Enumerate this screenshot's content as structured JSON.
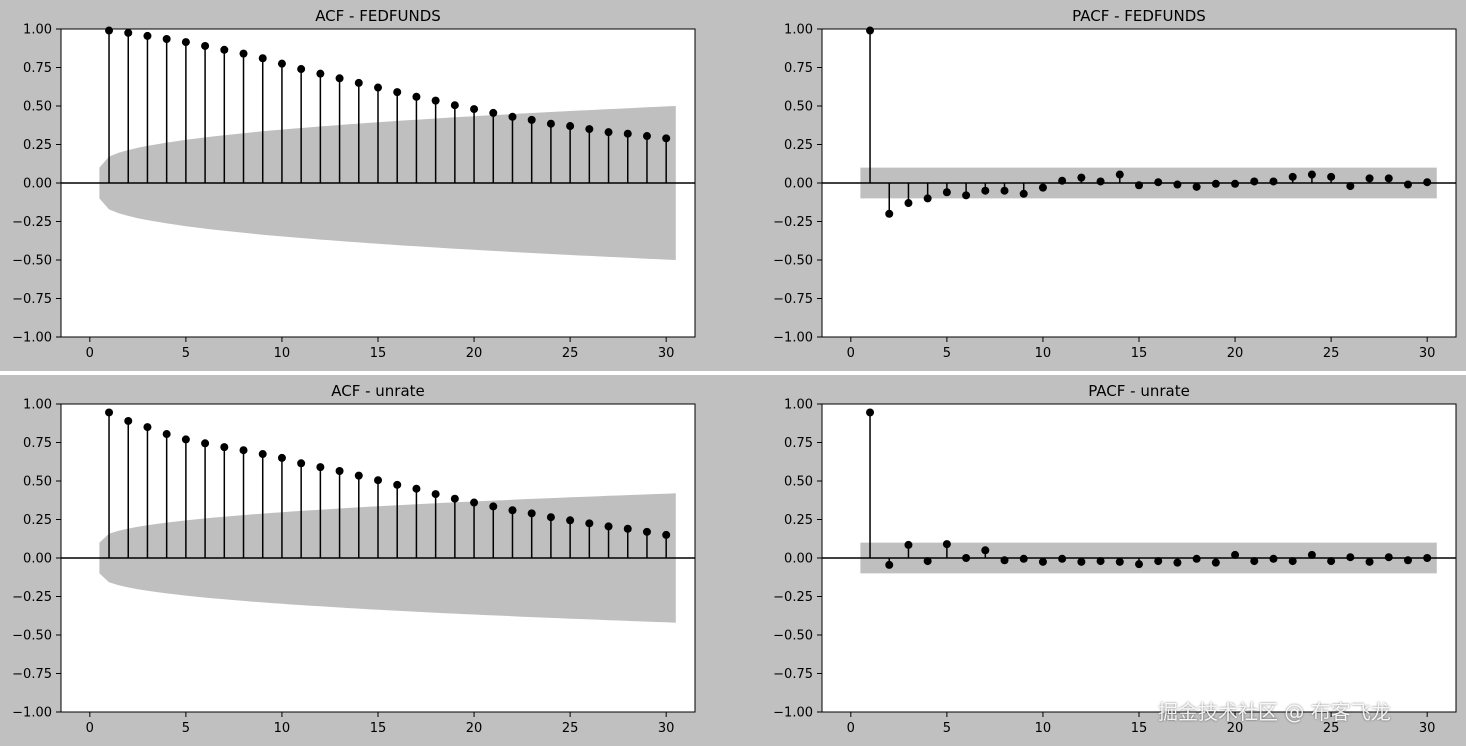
{
  "watermark": "掘金技术社区 @ 布客飞龙",
  "chart_data": [
    {
      "type": "stem",
      "title": "ACF - FEDFUNDS",
      "xlim": [
        -1.5,
        31.5
      ],
      "ylim": [
        -1.0,
        1.0
      ],
      "xticks": [
        0,
        5,
        10,
        15,
        20,
        25,
        30
      ],
      "yticks": [
        1.0,
        0.75,
        0.5,
        0.25,
        0.0,
        -0.25,
        -0.5,
        -0.75,
        -1.0
      ],
      "x": [
        1,
        2,
        3,
        4,
        5,
        6,
        7,
        8,
        9,
        10,
        11,
        12,
        13,
        14,
        15,
        16,
        17,
        18,
        19,
        20,
        21,
        22,
        23,
        24,
        25,
        26,
        27,
        28,
        29,
        30
      ],
      "values": [
        0.99,
        0.975,
        0.955,
        0.935,
        0.915,
        0.89,
        0.865,
        0.84,
        0.81,
        0.775,
        0.74,
        0.71,
        0.68,
        0.65,
        0.62,
        0.59,
        0.56,
        0.535,
        0.505,
        0.48,
        0.455,
        0.43,
        0.41,
        0.385,
        0.37,
        0.35,
        0.33,
        0.32,
        0.305,
        0.29
      ],
      "confint": {
        "type": "expanding",
        "x": [
          0.5,
          30.5
        ],
        "start": 0.1,
        "end": 0.5,
        "color": "#bfbfbf"
      },
      "grid": false
    },
    {
      "type": "stem",
      "title": "PACF - FEDFUNDS",
      "xlim": [
        -1.5,
        31.5
      ],
      "ylim": [
        -1.0,
        1.0
      ],
      "xticks": [
        0,
        5,
        10,
        15,
        20,
        25,
        30
      ],
      "yticks": [
        1.0,
        0.75,
        0.5,
        0.25,
        0.0,
        -0.25,
        -0.5,
        -0.75,
        -1.0
      ],
      "x": [
        1,
        2,
        3,
        4,
        5,
        6,
        7,
        8,
        9,
        10,
        11,
        12,
        13,
        14,
        15,
        16,
        17,
        18,
        19,
        20,
        21,
        22,
        23,
        24,
        25,
        26,
        27,
        28,
        29,
        30
      ],
      "values": [
        0.99,
        -0.2,
        -0.13,
        -0.1,
        -0.06,
        -0.08,
        -0.05,
        -0.05,
        -0.07,
        -0.03,
        0.015,
        0.035,
        0.01,
        0.055,
        -0.015,
        0.005,
        -0.01,
        -0.025,
        -0.005,
        -0.005,
        0.01,
        0.01,
        0.04,
        0.055,
        0.04,
        -0.02,
        0.03,
        0.03,
        -0.01,
        0.005
      ],
      "confint": {
        "type": "constant",
        "x": [
          0.5,
          30.5
        ],
        "start": 0.1,
        "end": 0.1,
        "color": "#bfbfbf"
      },
      "grid": false
    },
    {
      "type": "stem",
      "title": "ACF - unrate",
      "xlim": [
        -1.5,
        31.5
      ],
      "ylim": [
        -1.0,
        1.0
      ],
      "xticks": [
        0,
        5,
        10,
        15,
        20,
        25,
        30
      ],
      "yticks": [
        1.0,
        0.75,
        0.5,
        0.25,
        0.0,
        -0.25,
        -0.5,
        -0.75,
        -1.0
      ],
      "x": [
        1,
        2,
        3,
        4,
        5,
        6,
        7,
        8,
        9,
        10,
        11,
        12,
        13,
        14,
        15,
        16,
        17,
        18,
        19,
        20,
        21,
        22,
        23,
        24,
        25,
        26,
        27,
        28,
        29,
        30
      ],
      "values": [
        0.945,
        0.89,
        0.85,
        0.805,
        0.77,
        0.745,
        0.72,
        0.7,
        0.675,
        0.65,
        0.615,
        0.59,
        0.565,
        0.535,
        0.505,
        0.475,
        0.45,
        0.415,
        0.385,
        0.36,
        0.335,
        0.31,
        0.29,
        0.265,
        0.245,
        0.225,
        0.205,
        0.19,
        0.17,
        0.15
      ],
      "confint": {
        "type": "expanding",
        "x": [
          0.5,
          30.5
        ],
        "start": 0.1,
        "end": 0.42,
        "color": "#bfbfbf"
      },
      "grid": false
    },
    {
      "type": "stem",
      "title": "PACF - unrate",
      "xlim": [
        -1.5,
        31.5
      ],
      "ylim": [
        -1.0,
        1.0
      ],
      "xticks": [
        0,
        5,
        10,
        15,
        20,
        25,
        30
      ],
      "yticks": [
        1.0,
        0.75,
        0.5,
        0.25,
        0.0,
        -0.25,
        -0.5,
        -0.75,
        -1.0
      ],
      "x": [
        1,
        2,
        3,
        4,
        5,
        6,
        7,
        8,
        9,
        10,
        11,
        12,
        13,
        14,
        15,
        16,
        17,
        18,
        19,
        20,
        21,
        22,
        23,
        24,
        25,
        26,
        27,
        28,
        29,
        30
      ],
      "values": [
        0.945,
        -0.045,
        0.085,
        -0.02,
        0.09,
        0.0,
        0.05,
        -0.015,
        -0.005,
        -0.025,
        -0.005,
        -0.025,
        -0.02,
        -0.025,
        -0.04,
        -0.02,
        -0.03,
        -0.005,
        -0.03,
        0.02,
        -0.02,
        -0.005,
        -0.02,
        0.02,
        -0.02,
        0.005,
        -0.025,
        0.005,
        -0.015,
        0.0
      ],
      "confint": {
        "type": "constant",
        "x": [
          0.5,
          30.5
        ],
        "start": 0.1,
        "end": 0.1,
        "color": "#bfbfbf"
      },
      "grid": false
    }
  ]
}
